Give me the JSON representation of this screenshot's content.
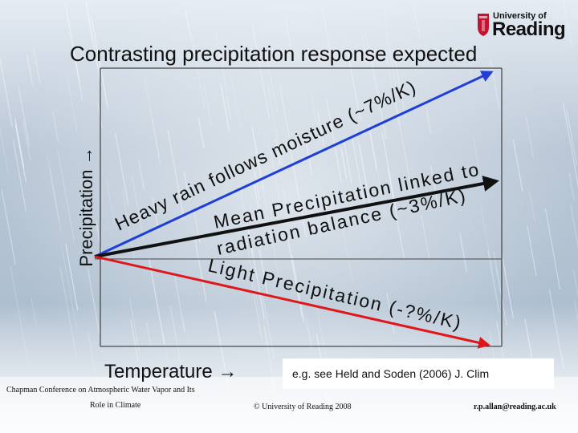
{
  "logo": {
    "line1": "University of",
    "line2": "Reading",
    "crest_color": "#c4122f"
  },
  "title": "Contrasting precipitation response expected",
  "y_axis_label": "Precipitation",
  "x_axis_label": "Temperature",
  "arrow_glyph": "→",
  "lines": {
    "heavy_rain": {
      "text": "Heavy rain follows moisture (~7%/K)",
      "color": "#1f3fd6"
    },
    "mean_precip": {
      "line1": "Mean Precipitation linked to",
      "line2": "radiation balance (~3%/K)",
      "color": "#111111"
    },
    "light_precip": {
      "text": "Light Precipitation (-?%/K)",
      "color": "#e0171a"
    }
  },
  "reference_line_color": "#444444",
  "citation": "e.g. see Held and Soden (2006) J. Clim",
  "footer": {
    "conference_line1": "Chapman Conference on Atmospheric Water Vapor and Its",
    "conference_line2": "Role in Climate",
    "copyright": "© University of Reading 2008",
    "email": "r.p.allan@reading.ac.uk"
  }
}
